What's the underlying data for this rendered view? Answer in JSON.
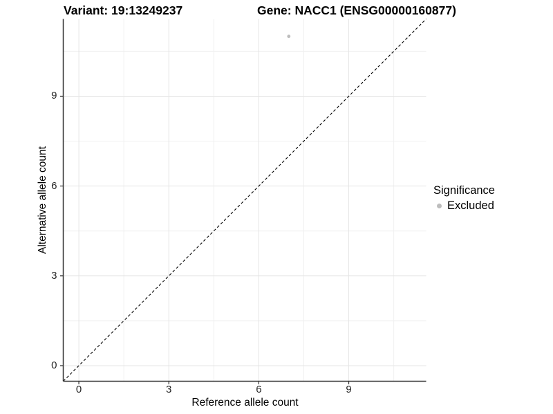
{
  "chart_data": {
    "type": "scatter",
    "titles": {
      "left": "Variant: 19:13249237",
      "right": "Gene: NACC1 (ENSG00000160877)"
    },
    "xlabel": "Reference allele count",
    "ylabel": "Alternative allele count",
    "xlim": [
      -0.52,
      11.58
    ],
    "ylim": [
      -0.52,
      11.58
    ],
    "x_ticks": [
      0,
      3,
      6,
      9
    ],
    "y_ticks": [
      0,
      3,
      6,
      9
    ],
    "x_minor_ticks": [
      1.5,
      4.5,
      7.5,
      10.5
    ],
    "y_minor_ticks": [
      1.5,
      4.5,
      7.5,
      10.5
    ],
    "grid": true,
    "points": [
      {
        "x": 7,
        "y": 11,
        "series": "Excluded"
      }
    ],
    "reference_line": {
      "kind": "identity y=x",
      "style": "dashed"
    },
    "legend": {
      "title": "Significance",
      "position": "right",
      "entries": [
        {
          "label": "Excluded",
          "color": "#bdbdbd",
          "marker": "circle"
        }
      ]
    },
    "colors": {
      "point": "#bdbdbd",
      "grid_major": "#e5e5e5",
      "grid_minor": "#f0f0f0",
      "axis_line": "#333333",
      "tick_mark": "#333333",
      "reference_line": "#000000",
      "background": "#ffffff"
    }
  }
}
